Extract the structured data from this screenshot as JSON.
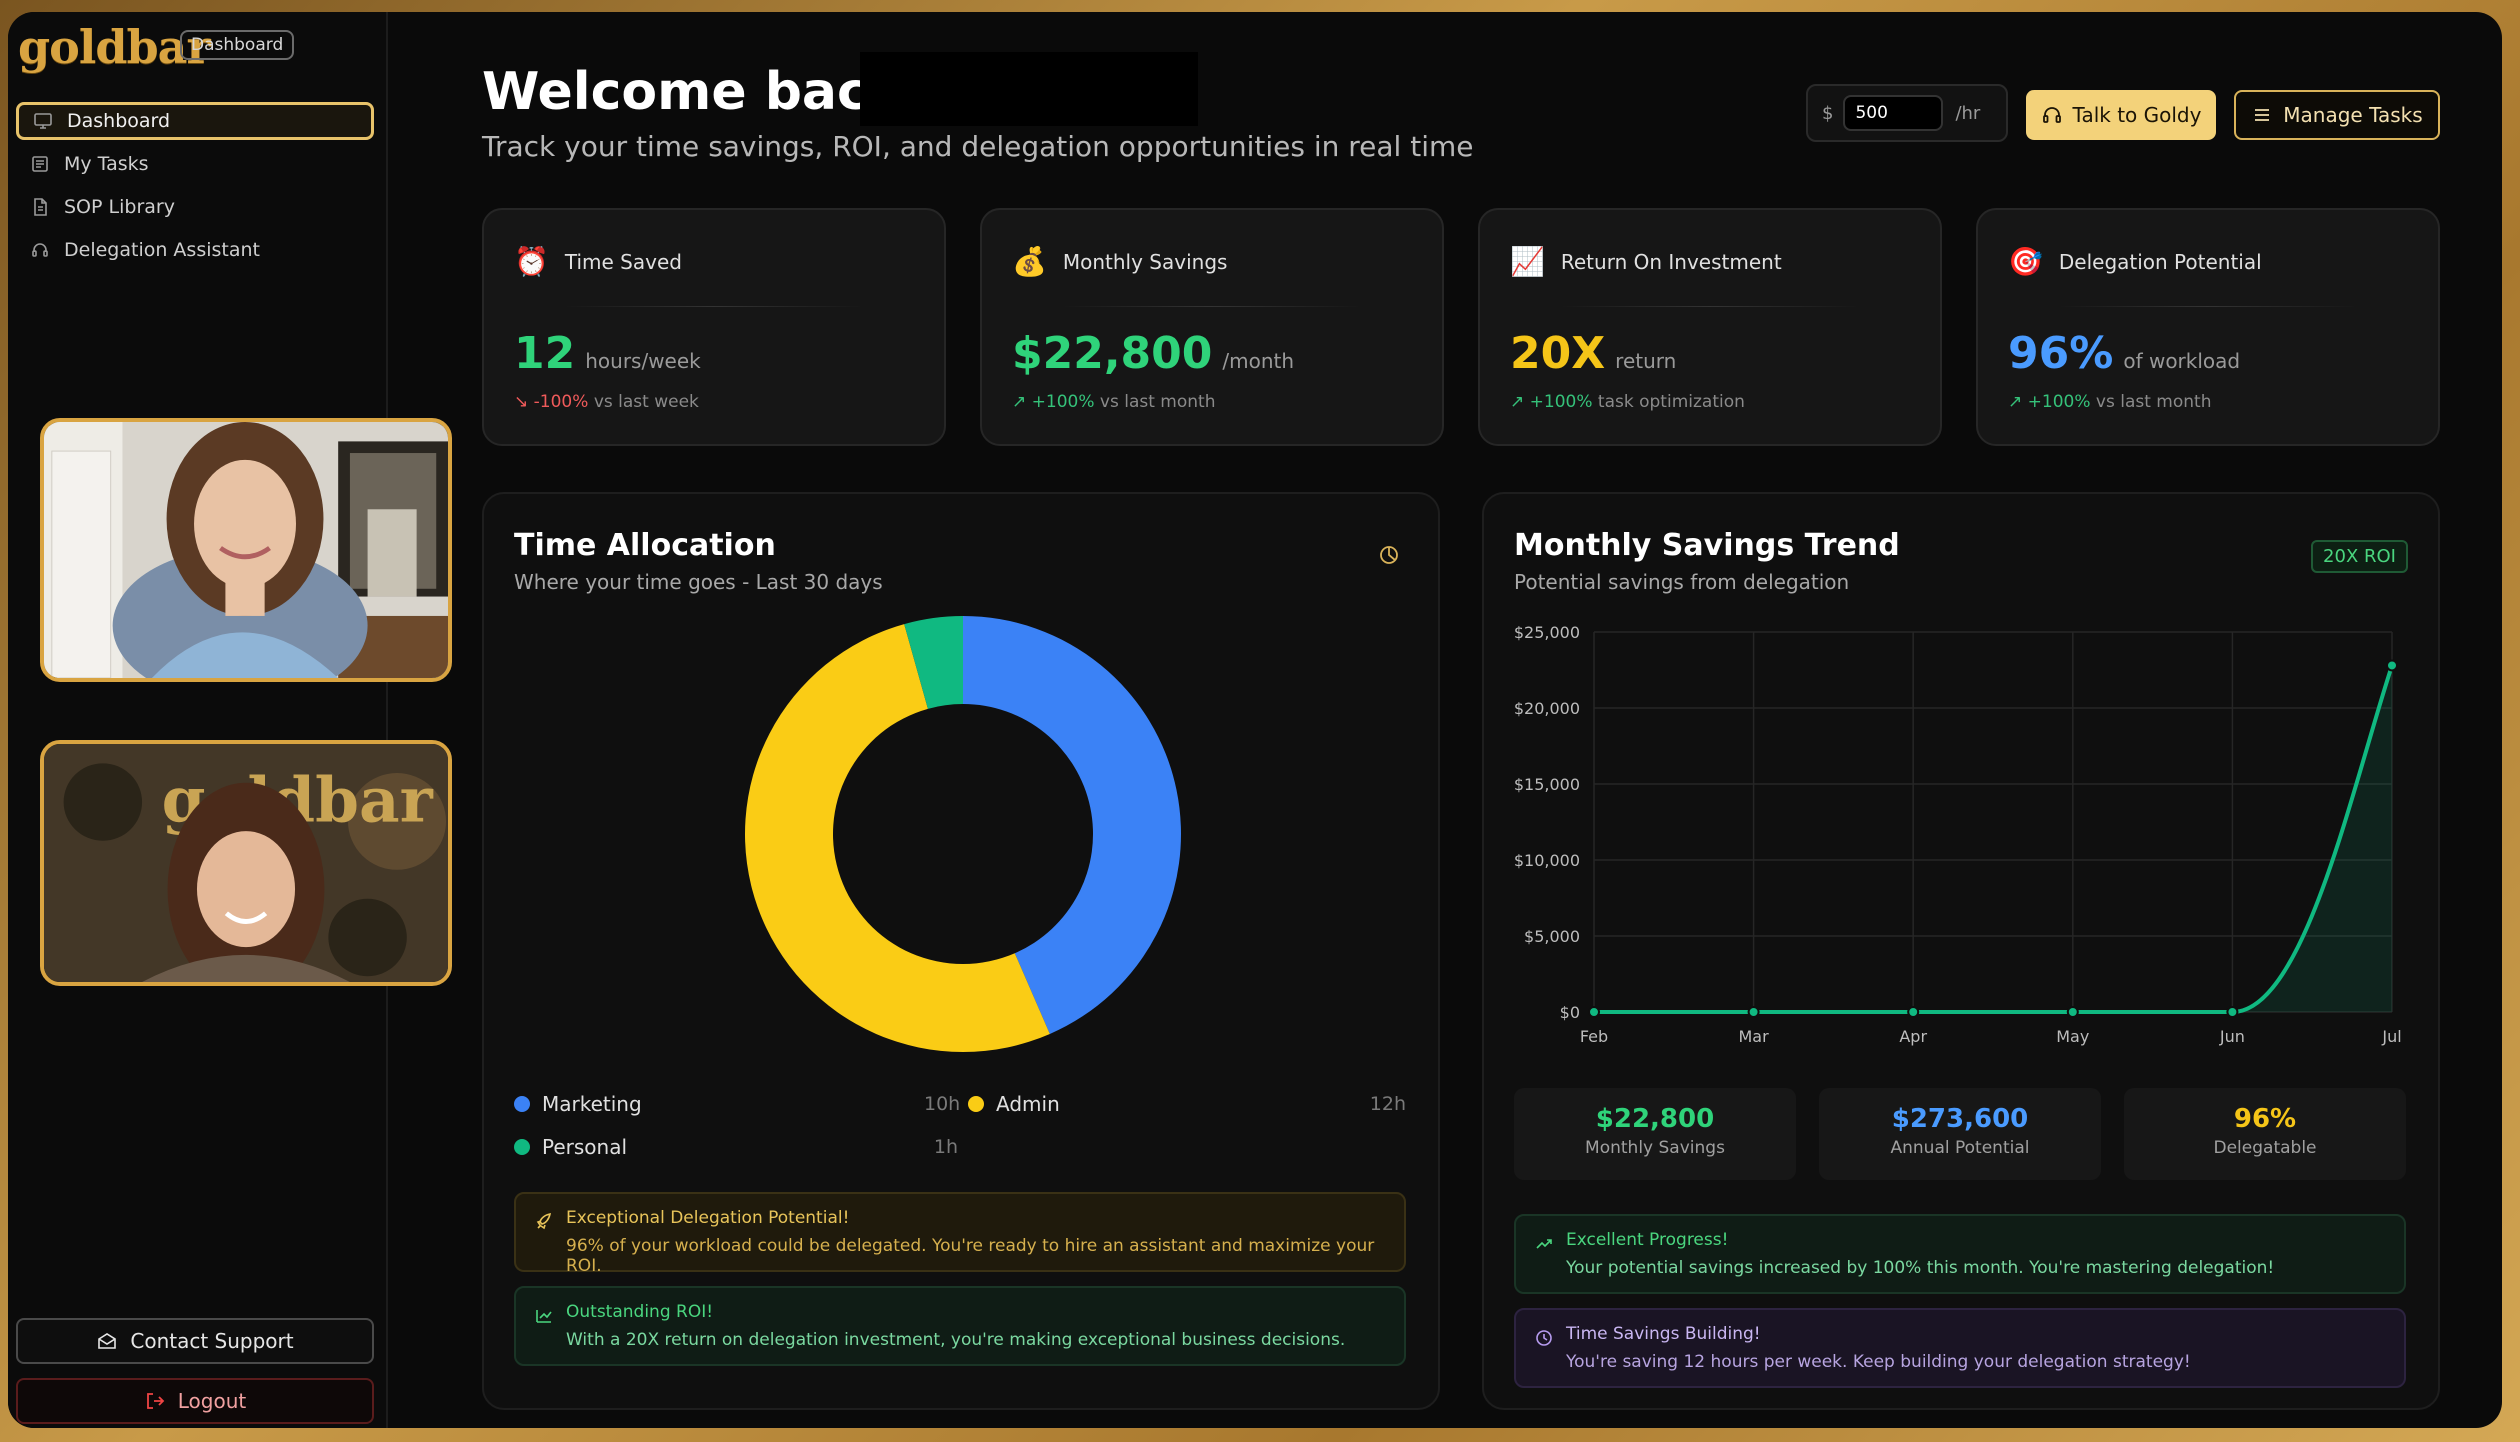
{
  "app": {
    "logo": "goldbar",
    "logo_badge": "Dashboard"
  },
  "sidebar": {
    "items": [
      {
        "label": "Dashboard",
        "icon": "monitor-icon",
        "active": true
      },
      {
        "label": "My Tasks",
        "icon": "task-list-icon",
        "active": false
      },
      {
        "label": "SOP Library",
        "icon": "document-icon",
        "active": false
      },
      {
        "label": "Delegation Assistant",
        "icon": "headset-icon",
        "active": false
      }
    ],
    "contact_support": "Contact Support",
    "logout": "Logout"
  },
  "video": {
    "tile2_overlay": "goldbar"
  },
  "header": {
    "welcome": "Welcome back,",
    "subtitle": "Track your time savings, ROI, and delegation opportunities in real time",
    "rate_currency": "$",
    "rate_value": "500",
    "rate_unit": "/hr",
    "talk_button": "Talk to Goldy",
    "manage_button": "Manage Tasks"
  },
  "cards": [
    {
      "title": "Time Saved",
      "icon": "alarm-clock-icon",
      "value": "12",
      "unit": "hours/week",
      "trend_value": "-100%",
      "trend_text": "vs last week",
      "trend_dir": "down",
      "color": "#2fd37a"
    },
    {
      "title": "Monthly Savings",
      "icon": "money-bag-icon",
      "value": "$22,800",
      "unit": "/month",
      "trend_value": "+100%",
      "trend_text": "vs last month",
      "trend_dir": "up",
      "color": "#2fd37a"
    },
    {
      "title": "Return On Investment",
      "icon": "chart-up-icon",
      "value": "20X",
      "unit": "return",
      "trend_value": "+100%",
      "trend_text": "task optimization",
      "trend_dir": "up",
      "color": "#f5c518"
    },
    {
      "title": "Delegation Potential",
      "icon": "target-icon",
      "value": "96%",
      "unit": "of workload",
      "trend_value": "+100%",
      "trend_text": "vs last month",
      "trend_dir": "up",
      "color": "#4a9bff"
    }
  ],
  "time_allocation": {
    "title": "Time Allocation",
    "subtitle": "Where your time goes - Last 30 days",
    "legend": [
      {
        "label": "Marketing",
        "value": "10h",
        "color": "#3b82f6"
      },
      {
        "label": "Admin",
        "value": "12h",
        "color": "#facc15"
      },
      {
        "label": "Personal",
        "value": "1h",
        "color": "#10b981"
      }
    ],
    "notices": [
      {
        "title": "Exceptional Delegation Potential!",
        "body": "96% of your workload could be delegated. You're ready to hire an assistant and maximize your ROI.",
        "icon": "rocket-icon"
      },
      {
        "title": "Outstanding ROI!",
        "body": "With a 20X return on delegation investment, you're making exceptional business decisions.",
        "icon": "trend-up-icon"
      }
    ]
  },
  "savings_trend": {
    "title": "Monthly Savings Trend",
    "subtitle": "Potential savings from delegation",
    "badge": "20X ROI",
    "stats": [
      {
        "value": "$22,800",
        "label": "Monthly Savings",
        "color": "#2fd37a"
      },
      {
        "value": "$273,600",
        "label": "Annual Potential",
        "color": "#4a9bff"
      },
      {
        "value": "96%",
        "label": "Delegatable",
        "color": "#f5c518"
      }
    ],
    "notices": [
      {
        "title": "Excellent Progress!",
        "body": "Your potential savings increased by 100% this month. You're mastering delegation!",
        "icon": "trend-up-icon"
      },
      {
        "title": "Time Savings Building!",
        "body": "You're saving 12 hours per week. Keep building your delegation strategy!",
        "icon": "clock-icon"
      }
    ]
  },
  "chart_data": [
    {
      "type": "pie",
      "title": "Time Allocation",
      "categories": [
        "Marketing",
        "Admin",
        "Personal"
      ],
      "values": [
        10,
        12,
        1
      ],
      "unit": "h",
      "colors": [
        "#3b82f6",
        "#facc15",
        "#10b981"
      ]
    },
    {
      "type": "area",
      "title": "Monthly Savings Trend",
      "x": [
        "Feb",
        "Mar",
        "Apr",
        "May",
        "Jun",
        "Jul"
      ],
      "series": [
        {
          "values": [
            0,
            0,
            0,
            0,
            0,
            22800
          ]
        }
      ],
      "ylim": [
        0,
        25000
      ],
      "yticks": [
        "$0",
        "$5,000",
        "$10,000",
        "$15,000",
        "$20,000",
        "$25,000"
      ],
      "grid": true,
      "color": "#10b981"
    }
  ]
}
